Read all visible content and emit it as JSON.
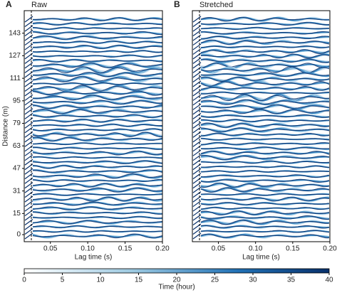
{
  "chart_data": [
    {
      "type": "wiggle",
      "panel_label": "A",
      "title": "Raw",
      "xlabel": "Lag time (s)",
      "ylabel": "Distance (m)",
      "xlim": [
        0.015,
        0.2
      ],
      "xticks": [
        0.05,
        {
          "value": 0.1,
          "label": "0.10"
        },
        0.15,
        {
          "value": 0.2,
          "label": "0.20"
        }
      ],
      "ylim": [
        -5,
        159
      ],
      "yticks": [
        0,
        15,
        31,
        47,
        63,
        79,
        95,
        111,
        127,
        143
      ]
    },
    {
      "type": "wiggle",
      "panel_label": "B",
      "title": "Stretched",
      "xlabel": "Lag time (s)",
      "xlim": [
        0.015,
        0.2
      ],
      "xticks": [
        0.05,
        {
          "value": 0.1,
          "label": "0.10"
        },
        0.15,
        {
          "value": 0.2,
          "label": "0.20"
        }
      ],
      "ylim": [
        -5,
        159
      ]
    }
  ],
  "colorbar": {
    "label": "Time (hour)",
    "lim": [
      0,
      40
    ],
    "ticks": [
      0,
      5,
      10,
      15,
      20,
      25,
      30,
      35,
      40
    ]
  }
}
